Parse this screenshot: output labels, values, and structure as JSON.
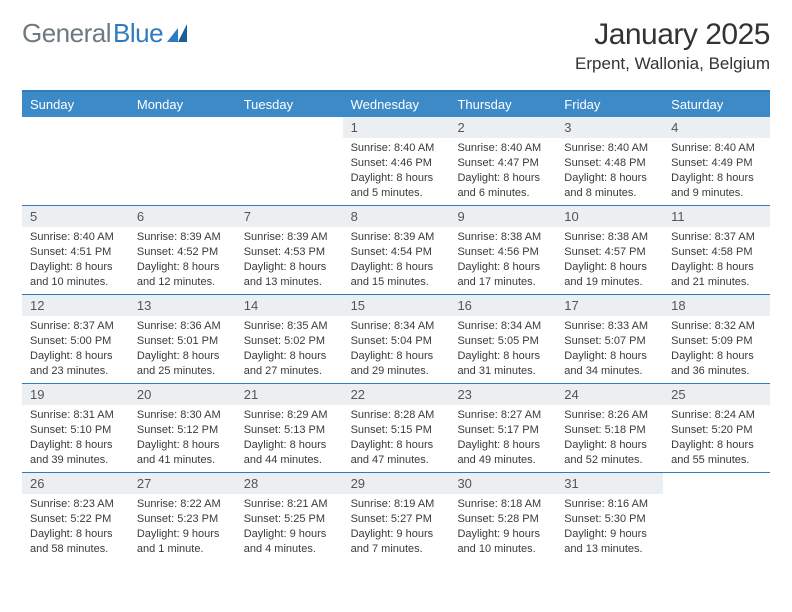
{
  "logo": {
    "part1": "General",
    "part2": "Blue"
  },
  "title": "January 2025",
  "subtitle": "Erpent, Wallonia, Belgium",
  "colors": {
    "accent": "#3d8ac9",
    "accent_border": "#2f7bbf",
    "num_bg": "#eceff1",
    "text": "#333333",
    "logo_gray": "#6e7a80"
  },
  "day_headers": [
    "Sunday",
    "Monday",
    "Tuesday",
    "Wednesday",
    "Thursday",
    "Friday",
    "Saturday"
  ],
  "weeks": [
    [
      {
        "n": "",
        "sr": "",
        "ss": "",
        "d1": "",
        "d2": ""
      },
      {
        "n": "",
        "sr": "",
        "ss": "",
        "d1": "",
        "d2": ""
      },
      {
        "n": "",
        "sr": "",
        "ss": "",
        "d1": "",
        "d2": ""
      },
      {
        "n": "1",
        "sr": "Sunrise: 8:40 AM",
        "ss": "Sunset: 4:46 PM",
        "d1": "Daylight: 8 hours",
        "d2": "and 5 minutes."
      },
      {
        "n": "2",
        "sr": "Sunrise: 8:40 AM",
        "ss": "Sunset: 4:47 PM",
        "d1": "Daylight: 8 hours",
        "d2": "and 6 minutes."
      },
      {
        "n": "3",
        "sr": "Sunrise: 8:40 AM",
        "ss": "Sunset: 4:48 PM",
        "d1": "Daylight: 8 hours",
        "d2": "and 8 minutes."
      },
      {
        "n": "4",
        "sr": "Sunrise: 8:40 AM",
        "ss": "Sunset: 4:49 PM",
        "d1": "Daylight: 8 hours",
        "d2": "and 9 minutes."
      }
    ],
    [
      {
        "n": "5",
        "sr": "Sunrise: 8:40 AM",
        "ss": "Sunset: 4:51 PM",
        "d1": "Daylight: 8 hours",
        "d2": "and 10 minutes."
      },
      {
        "n": "6",
        "sr": "Sunrise: 8:39 AM",
        "ss": "Sunset: 4:52 PM",
        "d1": "Daylight: 8 hours",
        "d2": "and 12 minutes."
      },
      {
        "n": "7",
        "sr": "Sunrise: 8:39 AM",
        "ss": "Sunset: 4:53 PM",
        "d1": "Daylight: 8 hours",
        "d2": "and 13 minutes."
      },
      {
        "n": "8",
        "sr": "Sunrise: 8:39 AM",
        "ss": "Sunset: 4:54 PM",
        "d1": "Daylight: 8 hours",
        "d2": "and 15 minutes."
      },
      {
        "n": "9",
        "sr": "Sunrise: 8:38 AM",
        "ss": "Sunset: 4:56 PM",
        "d1": "Daylight: 8 hours",
        "d2": "and 17 minutes."
      },
      {
        "n": "10",
        "sr": "Sunrise: 8:38 AM",
        "ss": "Sunset: 4:57 PM",
        "d1": "Daylight: 8 hours",
        "d2": "and 19 minutes."
      },
      {
        "n": "11",
        "sr": "Sunrise: 8:37 AM",
        "ss": "Sunset: 4:58 PM",
        "d1": "Daylight: 8 hours",
        "d2": "and 21 minutes."
      }
    ],
    [
      {
        "n": "12",
        "sr": "Sunrise: 8:37 AM",
        "ss": "Sunset: 5:00 PM",
        "d1": "Daylight: 8 hours",
        "d2": "and 23 minutes."
      },
      {
        "n": "13",
        "sr": "Sunrise: 8:36 AM",
        "ss": "Sunset: 5:01 PM",
        "d1": "Daylight: 8 hours",
        "d2": "and 25 minutes."
      },
      {
        "n": "14",
        "sr": "Sunrise: 8:35 AM",
        "ss": "Sunset: 5:02 PM",
        "d1": "Daylight: 8 hours",
        "d2": "and 27 minutes."
      },
      {
        "n": "15",
        "sr": "Sunrise: 8:34 AM",
        "ss": "Sunset: 5:04 PM",
        "d1": "Daylight: 8 hours",
        "d2": "and 29 minutes."
      },
      {
        "n": "16",
        "sr": "Sunrise: 8:34 AM",
        "ss": "Sunset: 5:05 PM",
        "d1": "Daylight: 8 hours",
        "d2": "and 31 minutes."
      },
      {
        "n": "17",
        "sr": "Sunrise: 8:33 AM",
        "ss": "Sunset: 5:07 PM",
        "d1": "Daylight: 8 hours",
        "d2": "and 34 minutes."
      },
      {
        "n": "18",
        "sr": "Sunrise: 8:32 AM",
        "ss": "Sunset: 5:09 PM",
        "d1": "Daylight: 8 hours",
        "d2": "and 36 minutes."
      }
    ],
    [
      {
        "n": "19",
        "sr": "Sunrise: 8:31 AM",
        "ss": "Sunset: 5:10 PM",
        "d1": "Daylight: 8 hours",
        "d2": "and 39 minutes."
      },
      {
        "n": "20",
        "sr": "Sunrise: 8:30 AM",
        "ss": "Sunset: 5:12 PM",
        "d1": "Daylight: 8 hours",
        "d2": "and 41 minutes."
      },
      {
        "n": "21",
        "sr": "Sunrise: 8:29 AM",
        "ss": "Sunset: 5:13 PM",
        "d1": "Daylight: 8 hours",
        "d2": "and 44 minutes."
      },
      {
        "n": "22",
        "sr": "Sunrise: 8:28 AM",
        "ss": "Sunset: 5:15 PM",
        "d1": "Daylight: 8 hours",
        "d2": "and 47 minutes."
      },
      {
        "n": "23",
        "sr": "Sunrise: 8:27 AM",
        "ss": "Sunset: 5:17 PM",
        "d1": "Daylight: 8 hours",
        "d2": "and 49 minutes."
      },
      {
        "n": "24",
        "sr": "Sunrise: 8:26 AM",
        "ss": "Sunset: 5:18 PM",
        "d1": "Daylight: 8 hours",
        "d2": "and 52 minutes."
      },
      {
        "n": "25",
        "sr": "Sunrise: 8:24 AM",
        "ss": "Sunset: 5:20 PM",
        "d1": "Daylight: 8 hours",
        "d2": "and 55 minutes."
      }
    ],
    [
      {
        "n": "26",
        "sr": "Sunrise: 8:23 AM",
        "ss": "Sunset: 5:22 PM",
        "d1": "Daylight: 8 hours",
        "d2": "and 58 minutes."
      },
      {
        "n": "27",
        "sr": "Sunrise: 8:22 AM",
        "ss": "Sunset: 5:23 PM",
        "d1": "Daylight: 9 hours",
        "d2": "and 1 minute."
      },
      {
        "n": "28",
        "sr": "Sunrise: 8:21 AM",
        "ss": "Sunset: 5:25 PM",
        "d1": "Daylight: 9 hours",
        "d2": "and 4 minutes."
      },
      {
        "n": "29",
        "sr": "Sunrise: 8:19 AM",
        "ss": "Sunset: 5:27 PM",
        "d1": "Daylight: 9 hours",
        "d2": "and 7 minutes."
      },
      {
        "n": "30",
        "sr": "Sunrise: 8:18 AM",
        "ss": "Sunset: 5:28 PM",
        "d1": "Daylight: 9 hours",
        "d2": "and 10 minutes."
      },
      {
        "n": "31",
        "sr": "Sunrise: 8:16 AM",
        "ss": "Sunset: 5:30 PM",
        "d1": "Daylight: 9 hours",
        "d2": "and 13 minutes."
      },
      {
        "n": "",
        "sr": "",
        "ss": "",
        "d1": "",
        "d2": ""
      }
    ]
  ]
}
